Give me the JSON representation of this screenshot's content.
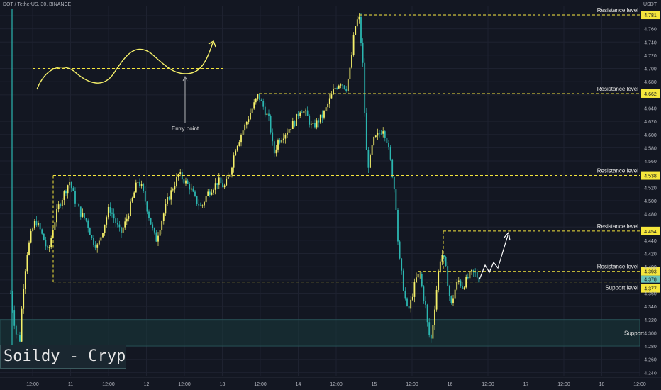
{
  "header": {
    "symbol": "DOT / TetherUS, 30, BINANCE",
    "currency": "USDT"
  },
  "watermark": "Soildy - Crypto for U",
  "chart_data": {
    "type": "candlestick",
    "y_ticks": [
      "4.240",
      "4.260",
      "4.280",
      "4.300",
      "4.320",
      "4.340",
      "4.360",
      "4.380",
      "4.400",
      "4.420",
      "4.440",
      "4.460",
      "4.480",
      "4.500",
      "4.520",
      "4.540",
      "4.560",
      "4.580",
      "4.600",
      "4.620",
      "4.640",
      "4.660",
      "4.680",
      "4.700",
      "4.720",
      "4.740",
      "4.760",
      "4.780"
    ],
    "ylim": [
      4.235,
      4.795
    ],
    "x_ticks": [
      "12:00",
      "11",
      "12:00",
      "12",
      "12:00",
      "13",
      "12:00",
      "14",
      "12:00",
      "15",
      "12:00",
      "16",
      "12:00",
      "17",
      "12:00",
      "18",
      "12:00"
    ],
    "resistance_levels": [
      {
        "label": "Resistance level",
        "value": 4.781,
        "value_label": "4.781"
      },
      {
        "label": "Resistance level",
        "value": 4.662,
        "value_label": "4.662"
      },
      {
        "label": "Resistance level",
        "value": 4.538,
        "value_label": "4.538"
      },
      {
        "label": "Resistance level",
        "value": 4.454,
        "value_label": "4.454"
      },
      {
        "label": "Resistance level",
        "value": 4.393,
        "value_label": "4.393"
      }
    ],
    "support_level": {
      "label": "Support level",
      "value": 4.377,
      "value_label": "4.377"
    },
    "current_price": {
      "value": 4.378,
      "value_label": "4.378"
    },
    "support_zone": {
      "label": "Support",
      "low": 4.28,
      "high": 4.32
    },
    "annotation": {
      "label": "Entry point"
    },
    "colors": {
      "background": "#131722",
      "up": "#f5f06a",
      "down": "#2bb6b0",
      "level": "#f5e63c",
      "zone": "#1a3a3c"
    }
  }
}
